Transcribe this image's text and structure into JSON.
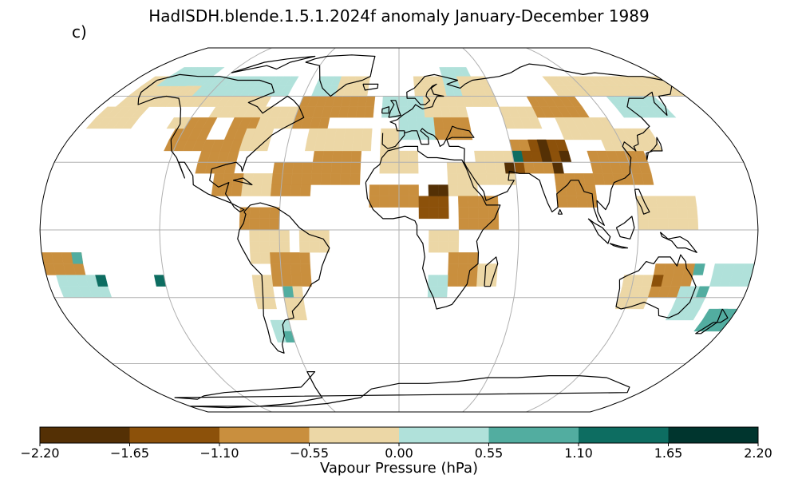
{
  "figure": {
    "title": "HadISDH.blende.1.5.1.2024f anomaly January-December 1989",
    "panel_letter": "c)"
  },
  "colorbar": {
    "label": "Vapour Pressure (hPa)",
    "ticks": [
      "−2.20",
      "−1.65",
      "−1.10",
      "−0.55",
      "0.00",
      "0.55",
      "1.10",
      "1.65",
      "2.20"
    ],
    "colors": [
      "#543005",
      "#8c510a",
      "#c98f3e",
      "#ecd7a6",
      "#b0e1da",
      "#52ada0",
      "#0d6d61",
      "#00352e"
    ]
  },
  "map": {
    "projection": "Robinson",
    "gridlines": true,
    "coastlines": true,
    "ocean_color": "#ffffff"
  }
}
